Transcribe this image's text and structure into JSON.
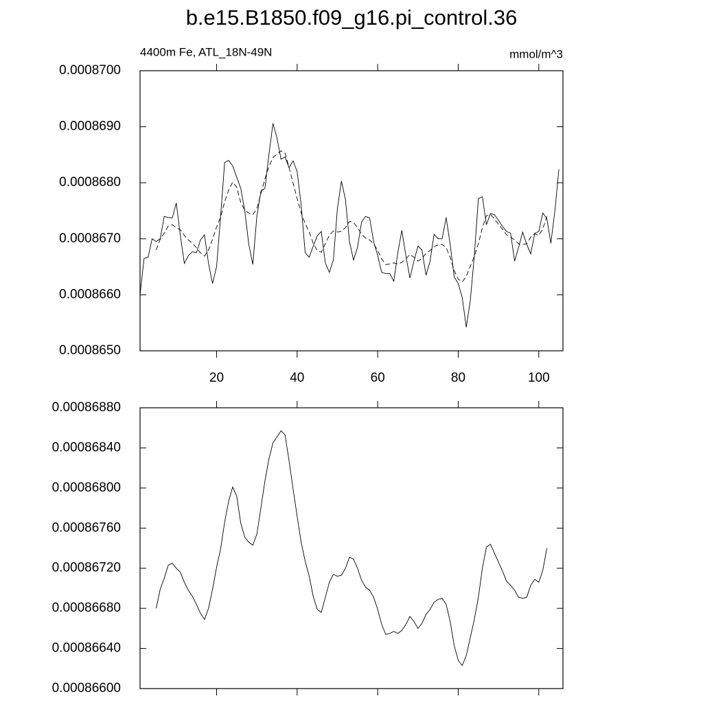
{
  "chart_data": [
    {
      "type": "line",
      "title": "b.e15.B1850.f09_g16.pi_control.36",
      "subtitle": "4400m Fe, ATL_18N-49N",
      "units": "mmol/m^3",
      "xlim": [
        1,
        106
      ],
      "xticks": [
        20,
        40,
        60,
        80,
        100
      ],
      "ylim": [
        0.000865,
        0.00087
      ],
      "yticks": [
        {
          "value": 0.000865,
          "label": "0.0008650"
        },
        {
          "value": 0.000866,
          "label": "0.0008660"
        },
        {
          "value": 0.000867,
          "label": "0.0008670"
        },
        {
          "value": 0.000868,
          "label": "0.0008680"
        },
        {
          "value": 0.000869,
          "label": "0.0008690"
        },
        {
          "value": 0.00087,
          "label": "0.0008700"
        }
      ],
      "x": [
        1,
        2,
        3,
        4,
        5,
        6,
        7,
        8,
        9,
        10,
        11,
        12,
        13,
        14,
        15,
        16,
        17,
        18,
        19,
        20,
        21,
        22,
        23,
        24,
        25,
        26,
        27,
        28,
        29,
        30,
        31,
        32,
        33,
        34,
        35,
        36,
        37,
        38,
        39,
        40,
        41,
        42,
        43,
        44,
        45,
        46,
        47,
        48,
        49,
        50,
        51,
        52,
        53,
        54,
        55,
        56,
        57,
        58,
        59,
        60,
        61,
        62,
        63,
        64,
        65,
        66,
        67,
        68,
        69,
        70,
        71,
        72,
        73,
        74,
        75,
        76,
        77,
        78,
        79,
        80,
        81,
        82,
        83,
        84,
        85,
        86,
        87,
        88,
        89,
        90,
        91,
        92,
        93,
        94,
        95,
        96,
        97,
        98,
        99,
        100,
        101,
        102,
        103,
        104,
        105
      ],
      "series": [
        {
          "color": "#000000",
          "dash": false,
          "values": [
            0.000866,
            0.00086665,
            0.00086667,
            0.000867,
            0.00086695,
            0.000867,
            0.0008674,
            0.00086738,
            0.00086737,
            0.00086764,
            0.00086706,
            0.00086656,
            0.0008667,
            0.00086677,
            0.00086675,
            0.00086698,
            0.00086707,
            0.00086656,
            0.0008662,
            0.0008665,
            0.0008674,
            0.00086836,
            0.0008684,
            0.0008683,
            0.0008681,
            0.0008679,
            0.0008675,
            0.0008669,
            0.00086654,
            0.0008674,
            0.00086785,
            0.0008679,
            0.0008685,
            0.00086906,
            0.0008688,
            0.00086842,
            0.00086846,
            0.00086827,
            0.00086839,
            0.0008682,
            0.0008676,
            0.00086675,
            0.00086667,
            0.00086687,
            0.00086705,
            0.00086713,
            0.00086657,
            0.0008664,
            0.00086662,
            0.00086754,
            0.00086803,
            0.0008677,
            0.00086695,
            0.00086662,
            0.00086685,
            0.0008673,
            0.0008674,
            0.00086737,
            0.00086695,
            0.0008667,
            0.0008664,
            0.00086638,
            0.00086638,
            0.00086624,
            0.00086675,
            0.00086715,
            0.0008667,
            0.0008663,
            0.0008666,
            0.00086687,
            0.0008668,
            0.00086635,
            0.0008666,
            0.00086708,
            0.000867,
            0.000867,
            0.00086738,
            0.0008669,
            0.00086632,
            0.0008662,
            0.00086595,
            0.00086542,
            0.0008659,
            0.0008667,
            0.00086772,
            0.00086775,
            0.00086725,
            0.00086745,
            0.00086743,
            0.00086733,
            0.00086722,
            0.00086713,
            0.0008671,
            0.0008666,
            0.00086685,
            0.00086712,
            0.0008669,
            0.00086673,
            0.0008671,
            0.00086713,
            0.00086746,
            0.00086736,
            0.00086692,
            0.0008675,
            0.00086824
          ]
        },
        {
          "color": "#000000",
          "dash": true,
          "values": [
            null,
            null,
            null,
            null,
            0.0008668,
            0.00086699,
            0.0008671,
            0.00086723,
            0.00086725,
            0.0008672,
            0.00086716,
            0.00086706,
            0.00086698,
            0.00086692,
            0.00086684,
            0.00086675,
            0.00086669,
            0.0008668,
            0.00086699,
            0.00086721,
            0.00086739,
            0.00086766,
            0.00086787,
            0.00086801,
            0.00086792,
            0.00086765,
            0.00086751,
            0.00086746,
            0.00086743,
            0.00086754,
            0.0008678,
            0.00086807,
            0.00086829,
            0.00086845,
            0.00086851,
            0.00086857,
            0.00086853,
            0.00086827,
            0.00086799,
            0.00086772,
            0.00086746,
            0.00086727,
            0.00086712,
            0.00086692,
            0.00086679,
            0.00086676,
            0.00086691,
            0.00086706,
            0.00086714,
            0.00086712,
            0.00086713,
            0.0008672,
            0.00086731,
            0.00086729,
            0.0008672,
            0.00086708,
            0.00086701,
            0.00086698,
            0.00086691,
            0.00086679,
            0.00086664,
            0.00086654,
            0.00086655,
            0.00086657,
            0.00086655,
            0.00086658,
            0.00086664,
            0.00086672,
            0.00086667,
            0.0008666,
            0.00086665,
            0.00086674,
            0.00086679,
            0.00086686,
            0.00086689,
            0.0008669,
            0.00086684,
            0.00086667,
            0.00086643,
            0.00086628,
            0.00086623,
            0.00086633,
            0.00086651,
            0.00086669,
            0.00086691,
            0.0008672,
            0.00086741,
            0.00086744,
            0.00086735,
            0.00086726,
            0.00086717,
            0.00086707,
            0.00086703,
            0.00086698,
            0.00086691,
            0.0008669,
            0.00086691,
            0.00086703,
            0.00086709,
            0.00086706,
            0.00086718,
            0.0008674,
            null,
            null,
            null
          ]
        }
      ]
    },
    {
      "type": "line",
      "show_xtick_labels": false,
      "xlim": [
        1,
        106
      ],
      "xticks": [
        20,
        40,
        60,
        80,
        100
      ],
      "ylim": [
        0.000866,
        0.0008688
      ],
      "yticks": [
        {
          "value": 0.000866,
          "label": "0.00086600"
        },
        {
          "value": 0.0008664,
          "label": "0.00086640"
        },
        {
          "value": 0.0008668,
          "label": "0.00086680"
        },
        {
          "value": 0.0008672,
          "label": "0.00086720"
        },
        {
          "value": 0.0008676,
          "label": "0.00086760"
        },
        {
          "value": 0.000868,
          "label": "0.00086800"
        },
        {
          "value": 0.0008684,
          "label": "0.00086840"
        },
        {
          "value": 0.0008688,
          "label": "0.00086880"
        }
      ],
      "x": [
        5,
        6,
        7,
        8,
        9,
        10,
        11,
        12,
        13,
        14,
        15,
        16,
        17,
        18,
        19,
        20,
        21,
        22,
        23,
        24,
        25,
        26,
        27,
        28,
        29,
        30,
        31,
        32,
        33,
        34,
        35,
        36,
        37,
        38,
        39,
        40,
        41,
        42,
        43,
        44,
        45,
        46,
        47,
        48,
        49,
        50,
        51,
        52,
        53,
        54,
        55,
        56,
        57,
        58,
        59,
        60,
        61,
        62,
        63,
        64,
        65,
        66,
        67,
        68,
        69,
        70,
        71,
        72,
        73,
        74,
        75,
        76,
        77,
        78,
        79,
        80,
        81,
        82,
        83,
        84,
        85,
        86,
        87,
        88,
        89,
        90,
        91,
        92,
        93,
        94,
        95,
        96,
        97,
        98,
        99,
        100,
        101,
        102
      ],
      "series": [
        {
          "color": "#000000",
          "dash": false,
          "values": [
            0.0008668,
            0.00086699,
            0.0008671,
            0.00086723,
            0.00086725,
            0.0008672,
            0.00086716,
            0.00086706,
            0.00086698,
            0.00086692,
            0.00086684,
            0.00086675,
            0.00086669,
            0.0008668,
            0.00086699,
            0.00086721,
            0.00086739,
            0.00086766,
            0.00086787,
            0.00086801,
            0.00086792,
            0.00086765,
            0.00086751,
            0.00086746,
            0.00086743,
            0.00086754,
            0.0008678,
            0.00086807,
            0.00086829,
            0.00086845,
            0.00086851,
            0.00086857,
            0.00086853,
            0.00086827,
            0.00086799,
            0.00086772,
            0.00086746,
            0.00086727,
            0.00086712,
            0.00086692,
            0.00086679,
            0.00086676,
            0.00086691,
            0.00086706,
            0.00086714,
            0.00086712,
            0.00086713,
            0.0008672,
            0.00086731,
            0.00086729,
            0.0008672,
            0.00086708,
            0.00086701,
            0.00086698,
            0.00086691,
            0.00086679,
            0.00086664,
            0.00086654,
            0.00086655,
            0.00086657,
            0.00086655,
            0.00086658,
            0.00086664,
            0.00086672,
            0.00086667,
            0.0008666,
            0.00086665,
            0.00086674,
            0.00086679,
            0.00086686,
            0.00086689,
            0.0008669,
            0.00086684,
            0.00086667,
            0.00086643,
            0.00086628,
            0.00086623,
            0.00086633,
            0.00086651,
            0.00086669,
            0.00086691,
            0.0008672,
            0.00086741,
            0.00086744,
            0.00086735,
            0.00086726,
            0.00086717,
            0.00086707,
            0.00086703,
            0.00086698,
            0.00086691,
            0.0008669,
            0.00086691,
            0.00086703,
            0.00086709,
            0.00086706,
            0.00086718,
            0.0008674
          ]
        }
      ]
    }
  ]
}
